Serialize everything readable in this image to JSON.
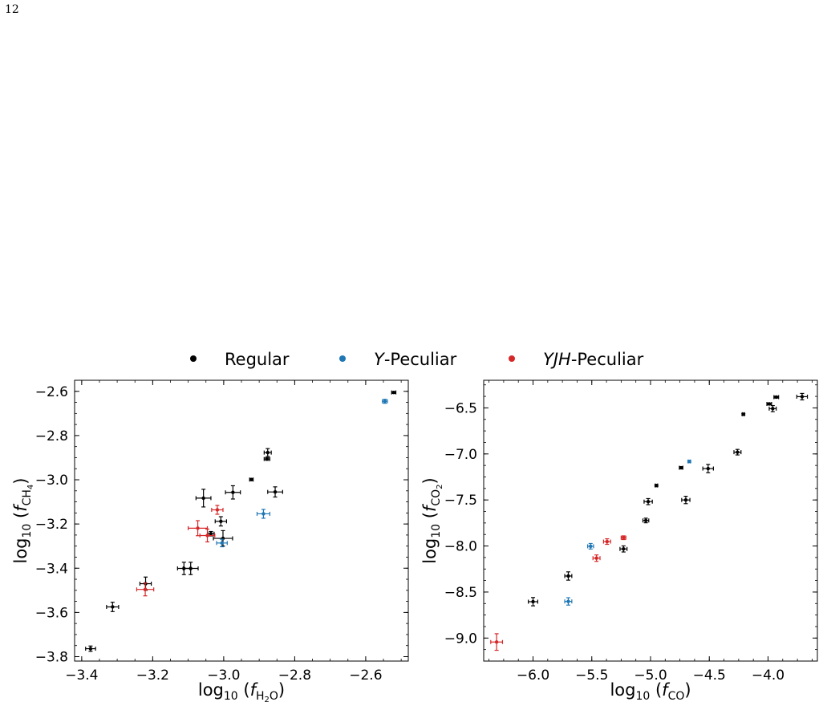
{
  "page_number": "12",
  "legend": [
    {
      "label": "Regular",
      "color": "#000000"
    },
    {
      "label": "Y-Peculiar",
      "italic_prefix": "Y",
      "rest": "-Peculiar",
      "color": "#1f77b4"
    },
    {
      "label": "YJH-Peculiar",
      "italic_prefix": "YJH",
      "rest": "-Peculiar",
      "color": "#d62728"
    }
  ],
  "colors": {
    "Regular": "#000000",
    "Y-Peculiar": "#1f77b4",
    "YJH-Peculiar": "#d62728"
  },
  "chart_data": [
    {
      "type": "scatter",
      "xlabel": "log10 (f_H2O)",
      "ylabel": "log10 (f_CH4)",
      "xlim": [
        -3.42,
        -2.48
      ],
      "ylim": [
        -3.82,
        -2.55
      ],
      "xticks": [
        -3.4,
        -3.2,
        -3.0,
        -2.8,
        -2.6
      ],
      "xtick_labels": [
        "−3.4",
        "−3.2",
        "−3.0",
        "−2.8",
        "−2.6"
      ],
      "yticks": [
        -3.8,
        -3.6,
        -3.4,
        -3.2,
        -3.0,
        -2.8,
        -2.6
      ],
      "ytick_labels": [
        "−3.8",
        "−3.6",
        "−3.4",
        "−3.2",
        "−3.0",
        "−2.8",
        "−2.6"
      ],
      "legend_position": "top-center",
      "points": [
        {
          "x": -3.375,
          "y": -3.764,
          "xerr": 0.014,
          "yerr": 0.012,
          "group": "Regular"
        },
        {
          "x": -3.313,
          "y": -3.575,
          "xerr": 0.017,
          "yerr": 0.021,
          "group": "Regular"
        },
        {
          "x": -3.22,
          "y": -3.47,
          "xerr": 0.016,
          "yerr": 0.03,
          "group": "Regular"
        },
        {
          "x": -3.112,
          "y": -3.401,
          "xerr": 0.018,
          "yerr": 0.028,
          "group": "Regular"
        },
        {
          "x": -3.093,
          "y": -3.401,
          "xerr": 0.021,
          "yerr": 0.028,
          "group": "Regular"
        },
        {
          "x": -3.057,
          "y": -3.083,
          "xerr": 0.021,
          "yerr": 0.04,
          "group": "Regular"
        },
        {
          "x": -3.036,
          "y": -3.244,
          "xerr": 0.009,
          "yerr": 0.01,
          "group": "Regular"
        },
        {
          "x": -3.008,
          "y": -3.188,
          "xerr": 0.016,
          "yerr": 0.021,
          "group": "Regular"
        },
        {
          "x": -3.002,
          "y": -3.265,
          "xerr": 0.027,
          "yerr": 0.035,
          "group": "Regular"
        },
        {
          "x": -2.974,
          "y": -3.057,
          "xerr": 0.021,
          "yerr": 0.03,
          "group": "Regular"
        },
        {
          "x": -2.922,
          "y": -2.999,
          "xerr": 0.005,
          "yerr": 0.005,
          "group": "Regular"
        },
        {
          "x": -2.876,
          "y": -2.877,
          "xerr": 0.01,
          "yerr": 0.018,
          "group": "Regular"
        },
        {
          "x": -2.878,
          "y": -2.906,
          "xerr": 0.008,
          "yerr": 0.006,
          "group": "Regular"
        },
        {
          "x": -2.855,
          "y": -3.055,
          "xerr": 0.021,
          "yerr": 0.023,
          "group": "Regular"
        },
        {
          "x": -2.521,
          "y": -2.605,
          "xerr": 0.006,
          "yerr": 0.004,
          "group": "Regular"
        },
        {
          "x": -3.005,
          "y": -3.286,
          "xerr": 0.015,
          "yerr": 0.017,
          "group": "Y-Peculiar"
        },
        {
          "x": -2.888,
          "y": -3.154,
          "xerr": 0.018,
          "yerr": 0.02,
          "group": "Y-Peculiar"
        },
        {
          "x": -2.546,
          "y": -2.645,
          "xerr": 0.007,
          "yerr": 0.009,
          "group": "Y-Peculiar"
        },
        {
          "x": -3.221,
          "y": -3.496,
          "xerr": 0.024,
          "yerr": 0.029,
          "group": "YJH-Peculiar"
        },
        {
          "x": -3.073,
          "y": -3.219,
          "xerr": 0.027,
          "yerr": 0.034,
          "group": "YJH-Peculiar"
        },
        {
          "x": -3.046,
          "y": -3.252,
          "xerr": 0.021,
          "yerr": 0.029,
          "group": "YJH-Peculiar"
        },
        {
          "x": -3.018,
          "y": -3.136,
          "xerr": 0.016,
          "yerr": 0.02,
          "group": "YJH-Peculiar"
        }
      ]
    },
    {
      "type": "scatter",
      "xlabel": "log10 (f_CO)",
      "ylabel": "log10 (f_CO2)",
      "xlim": [
        -6.42,
        -3.58
      ],
      "ylim": [
        -9.25,
        -6.2
      ],
      "xticks": [
        -6.0,
        -5.5,
        -5.0,
        -4.5,
        -4.0
      ],
      "xtick_labels": [
        "−6.0",
        "−5.5",
        "−5.0",
        "−4.5",
        "−4.0"
      ],
      "yticks": [
        -9.0,
        -8.5,
        -8.0,
        -7.5,
        -7.0,
        -6.5
      ],
      "ytick_labels": [
        "−9.0",
        "−8.5",
        "−8.0",
        "−7.5",
        "−7.0",
        "−6.5"
      ],
      "points": [
        {
          "x": -6.0,
          "y": -8.605,
          "xerr": 0.04,
          "yerr": 0.045,
          "group": "Regular"
        },
        {
          "x": -5.7,
          "y": -8.326,
          "xerr": 0.03,
          "yerr": 0.045,
          "group": "Regular"
        },
        {
          "x": -5.23,
          "y": -8.032,
          "xerr": 0.03,
          "yerr": 0.033,
          "group": "Regular"
        },
        {
          "x": -5.04,
          "y": -7.723,
          "xerr": 0.025,
          "yerr": 0.025,
          "group": "Regular"
        },
        {
          "x": -5.02,
          "y": -7.518,
          "xerr": 0.035,
          "yerr": 0.033,
          "group": "Regular"
        },
        {
          "x": -4.95,
          "y": -7.343,
          "xerr": 0.01,
          "yerr": 0.008,
          "group": "Regular"
        },
        {
          "x": -4.74,
          "y": -7.15,
          "xerr": 0.015,
          "yerr": 0.012,
          "group": "Regular"
        },
        {
          "x": -4.7,
          "y": -7.5,
          "xerr": 0.035,
          "yerr": 0.04,
          "group": "Regular"
        },
        {
          "x": -4.51,
          "y": -7.159,
          "xerr": 0.045,
          "yerr": 0.045,
          "group": "Regular"
        },
        {
          "x": -4.26,
          "y": -6.981,
          "xerr": 0.03,
          "yerr": 0.03,
          "group": "Regular"
        },
        {
          "x": -4.21,
          "y": -6.569,
          "xerr": 0.01,
          "yerr": 0.008,
          "group": "Regular"
        },
        {
          "x": -3.99,
          "y": -6.457,
          "xerr": 0.02,
          "yerr": 0.01,
          "group": "Regular"
        },
        {
          "x": -3.96,
          "y": -6.508,
          "xerr": 0.03,
          "yerr": 0.033,
          "group": "Regular"
        },
        {
          "x": -3.93,
          "y": -6.383,
          "xerr": 0.02,
          "yerr": 0.01,
          "group": "Regular"
        },
        {
          "x": -3.71,
          "y": -6.378,
          "xerr": 0.045,
          "yerr": 0.035,
          "group": "Regular"
        },
        {
          "x": -5.7,
          "y": -8.602,
          "xerr": 0.03,
          "yerr": 0.04,
          "group": "Y-Peculiar"
        },
        {
          "x": -5.51,
          "y": -8.003,
          "xerr": 0.025,
          "yerr": 0.03,
          "group": "Y-Peculiar"
        },
        {
          "x": -4.67,
          "y": -7.082,
          "xerr": 0.01,
          "yerr": 0.008,
          "group": "Y-Peculiar"
        },
        {
          "x": -6.31,
          "y": -9.043,
          "xerr": 0.05,
          "yerr": 0.09,
          "group": "YJH-Peculiar"
        },
        {
          "x": -5.46,
          "y": -8.132,
          "xerr": 0.03,
          "yerr": 0.035,
          "group": "YJH-Peculiar"
        },
        {
          "x": -5.37,
          "y": -7.952,
          "xerr": 0.03,
          "yerr": 0.03,
          "group": "YJH-Peculiar"
        },
        {
          "x": -5.23,
          "y": -7.91,
          "xerr": 0.02,
          "yerr": 0.02,
          "group": "YJH-Peculiar"
        }
      ]
    }
  ]
}
